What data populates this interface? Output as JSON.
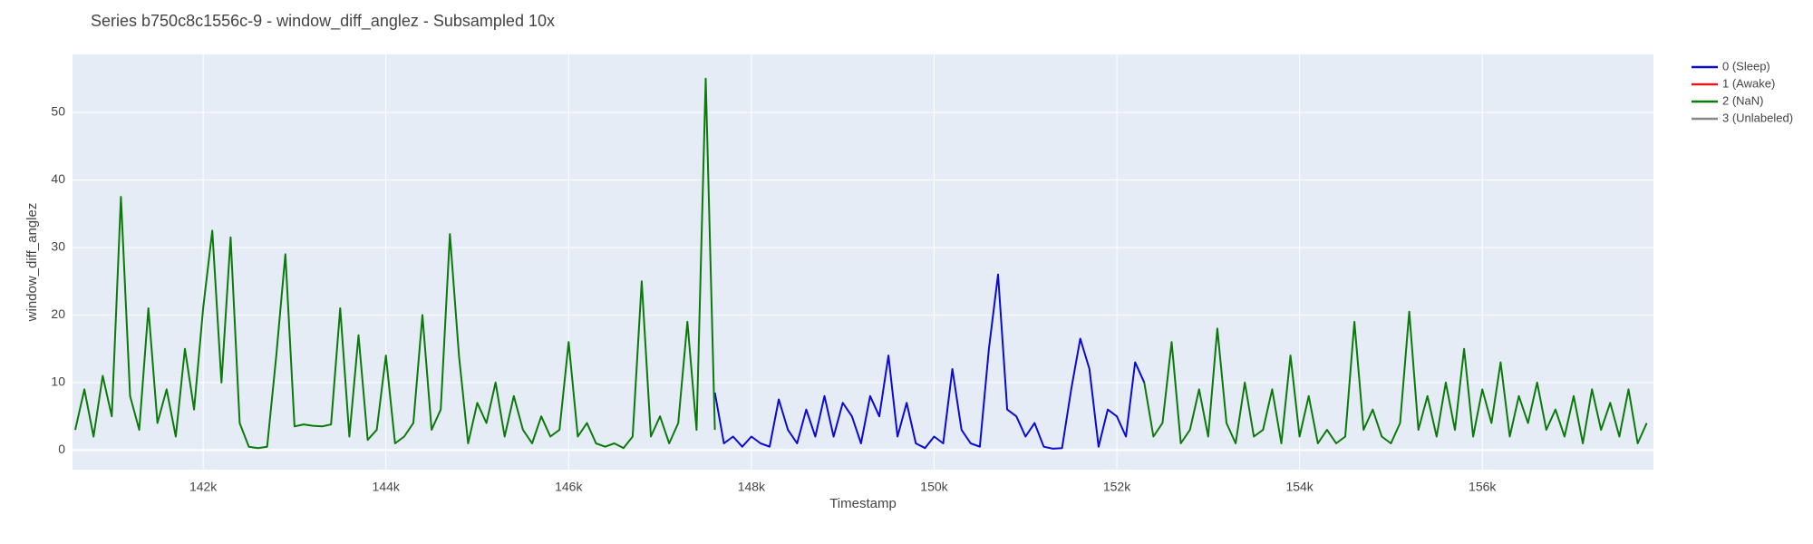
{
  "chart_data": {
    "type": "line",
    "title": "Series b750c8c1556c-9 - window_diff_anglez - Subsampled 10x",
    "x_label": "Timestamp",
    "y_label": "window_diff_anglez",
    "xlim": [
      140570,
      157873
    ],
    "ylim": [
      -2.9,
      58.6
    ],
    "xticks": [
      {
        "value": 142000,
        "label": "142k"
      },
      {
        "value": 144000,
        "label": "144k"
      },
      {
        "value": 146000,
        "label": "146k"
      },
      {
        "value": 148000,
        "label": "148k"
      },
      {
        "value": 150000,
        "label": "150k"
      },
      {
        "value": 152000,
        "label": "152k"
      },
      {
        "value": 154000,
        "label": "154k"
      },
      {
        "value": 156000,
        "label": "156k"
      }
    ],
    "yticks": [
      0,
      10,
      20,
      30,
      40,
      50
    ],
    "grid": true,
    "legend": "outside-right",
    "series": [
      {
        "name": "0 (Sleep)",
        "color": "#0a0ad2",
        "x": [
          147600,
          147700,
          147800,
          147900,
          148000,
          148100,
          148200,
          148300,
          148400,
          148500,
          148600,
          148700,
          148800,
          148900,
          149000,
          149100,
          149200,
          149300,
          149400,
          149500,
          149600,
          149700,
          149800,
          149900,
          150000,
          150100,
          150200,
          150300,
          150400,
          150500,
          150600,
          150700,
          150800,
          150900,
          151000,
          151100,
          151200,
          151300,
          151400,
          151500,
          151600,
          151700,
          151800,
          151900,
          152000,
          152100,
          152200,
          152300
        ],
        "values": [
          8.5,
          1,
          2,
          0.5,
          2,
          1,
          0.5,
          7.5,
          3,
          1,
          6,
          2,
          8,
          2,
          7,
          5,
          1,
          8,
          5,
          14,
          2,
          7,
          1,
          0.3,
          2,
          1,
          12,
          3,
          1,
          0.5,
          15,
          26,
          6,
          5,
          2,
          4,
          0.5,
          0.2,
          0.3,
          9,
          16.5,
          12,
          0.5,
          6,
          5,
          2,
          13,
          10
        ]
      },
      {
        "name": "1 (Awake)",
        "color": "#e31a1c",
        "x": [],
        "values": []
      },
      {
        "name": "2 (NaN)",
        "color": "#0b7a0b",
        "x": [
          140600,
          140700,
          140800,
          140900,
          141000,
          141100,
          141200,
          141300,
          141400,
          141500,
          141600,
          141700,
          141800,
          141900,
          142000,
          142100,
          142200,
          142300,
          142400,
          142500,
          142600,
          142700,
          142800,
          142900,
          143000,
          143100,
          143200,
          143300,
          143400,
          143500,
          143600,
          143700,
          143800,
          143900,
          144000,
          144100,
          144200,
          144300,
          144400,
          144500,
          144600,
          144700,
          144800,
          144900,
          145000,
          145100,
          145200,
          145300,
          145400,
          145500,
          145600,
          145700,
          145800,
          145900,
          146000,
          146100,
          146200,
          146300,
          146400,
          146500,
          146600,
          146700,
          146800,
          146900,
          147000,
          147100,
          147200,
          147300,
          147400,
          147500,
          147600,
          150000,
          152300,
          152400,
          152500,
          152600,
          152700,
          152800,
          152900,
          153000,
          153100,
          153200,
          153300,
          153400,
          153500,
          153600,
          153700,
          153800,
          153900,
          154000,
          154100,
          154200,
          154300,
          154400,
          154500,
          154600,
          154700,
          154800,
          154900,
          155000,
          155100,
          155200,
          155300,
          155400,
          155500,
          155600,
          155700,
          155800,
          155900,
          156000,
          156100,
          156200,
          156300,
          156400,
          156500,
          156600,
          156700,
          156800,
          156900,
          157000,
          157100,
          157200,
          157300,
          157400,
          157500,
          157600,
          157700,
          157800
        ],
        "values": [
          3,
          9,
          2,
          11,
          5,
          37.5,
          8,
          3,
          21,
          4,
          9,
          2,
          15,
          6,
          21,
          32.5,
          10,
          31.5,
          4,
          0.5,
          0.3,
          0.5,
          14,
          29,
          3.5,
          3.8,
          3.6,
          3.5,
          3.8,
          21,
          2,
          17,
          1.5,
          3,
          14,
          1,
          2,
          4,
          20,
          3,
          6,
          32,
          14,
          1,
          7,
          4,
          10,
          2,
          8,
          3,
          1,
          5,
          2,
          3,
          16,
          2,
          4,
          1,
          0.5,
          1,
          0.3,
          2,
          25,
          2,
          5,
          1,
          4,
          19,
          3,
          55,
          3,
          null,
          10,
          2,
          4,
          16,
          1,
          3,
          9,
          2,
          18,
          4,
          1,
          10,
          2,
          3,
          9,
          1,
          14,
          2,
          8,
          1,
          3,
          1,
          2,
          19,
          3,
          6,
          2,
          1,
          4,
          20.5,
          3,
          8,
          2,
          10,
          3,
          15,
          2,
          9,
          4,
          13,
          2,
          8,
          4,
          10,
          3,
          6,
          2,
          8,
          1,
          9,
          3,
          7,
          2,
          9,
          1,
          4
        ]
      },
      {
        "name": "3 (Unlabeled)",
        "color": "#888888",
        "x": [],
        "values": []
      }
    ]
  }
}
